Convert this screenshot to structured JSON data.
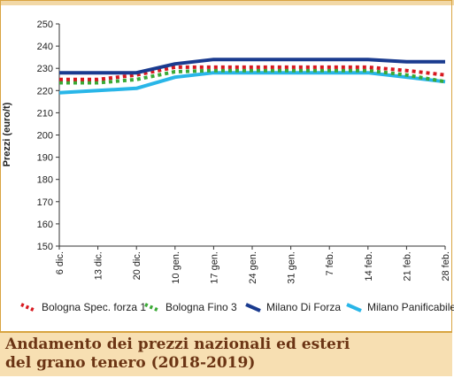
{
  "caption": {
    "line1": "Andamento dei prezzi nazionali ed esteri",
    "line2": "del grano tenero (2018-2019)"
  },
  "chart_data": {
    "type": "line",
    "ylabel": "Prezzi (euro/t)",
    "xlabel": "",
    "ylim": [
      150,
      250
    ],
    "yticks": [
      150,
      160,
      170,
      180,
      190,
      200,
      210,
      220,
      230,
      240,
      250
    ],
    "categories": [
      "6 dic.",
      "13 dic.",
      "20 dic.",
      "10 gen.",
      "17 gen.",
      "24 gen.",
      "31 gen.",
      "7 feb.",
      "14 feb.",
      "21 feb.",
      "28 feb."
    ],
    "grid": false,
    "legend_position": "bottom",
    "series": [
      {
        "name": "Bologna Spec. forza 1",
        "color": "#d71920",
        "style": "dotted",
        "values": [
          225,
          225,
          227,
          230.5,
          230.5,
          230.5,
          230.5,
          230.5,
          230.5,
          229,
          227
        ]
      },
      {
        "name": "Bologna Fino 3",
        "color": "#3aa935",
        "style": "dotted",
        "values": [
          223.5,
          223.5,
          225,
          228.5,
          229,
          229,
          229,
          229,
          229,
          227,
          224
        ]
      },
      {
        "name": "Milano Di Forza",
        "color": "#1a3b8f",
        "style": "solid",
        "values": [
          228,
          228,
          228,
          232,
          234,
          234,
          234,
          234,
          234,
          233,
          233
        ]
      },
      {
        "name": "Milano Panificabile",
        "color": "#29b6e8",
        "style": "solid",
        "values": [
          219,
          220,
          221,
          226,
          228,
          228,
          228,
          228,
          228,
          226,
          224
        ]
      }
    ]
  }
}
